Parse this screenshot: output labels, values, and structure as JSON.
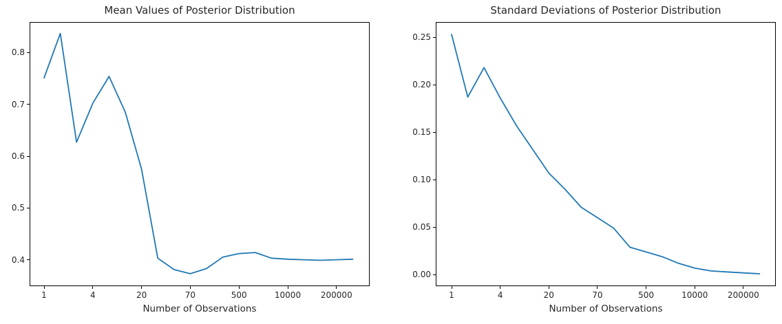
{
  "figure": {
    "background": "#ffffff",
    "axes_edge_color": "#000000",
    "text_color": "#262626"
  },
  "chart_data": [
    {
      "type": "line",
      "title": "Mean Values of Posterior Distribution",
      "xlabel": "Number of Observations",
      "ylabel": "",
      "legend": "none",
      "grid": false,
      "line_color": "#1f77b4",
      "x_scale": "log-spaced observation counts plotted by index",
      "x_tick_labels": [
        "1",
        "4",
        "20",
        "70",
        "500",
        "10000",
        "200000"
      ],
      "x_tick_indices": [
        0,
        3,
        6,
        9,
        12,
        15,
        18
      ],
      "y_tick_labels": [
        "0.4",
        "0.5",
        "0.6",
        "0.7",
        "0.8"
      ],
      "y_ticks": [
        0.4,
        0.5,
        0.6,
        0.7,
        0.8
      ],
      "ylim": [
        0.349,
        0.859
      ],
      "values": [
        0.751,
        0.837,
        0.627,
        0.702,
        0.754,
        0.685,
        0.575,
        0.403,
        0.381,
        0.373,
        0.383,
        0.405,
        0.412,
        0.414,
        0.403,
        0.401,
        0.4,
        0.399,
        0.4,
        0.401
      ]
    },
    {
      "type": "line",
      "title": "Standard Deviations of Posterior Distribution",
      "xlabel": "Number of Observations",
      "ylabel": "",
      "legend": "none",
      "grid": false,
      "line_color": "#1f77b4",
      "x_scale": "log-spaced observation counts plotted by index",
      "x_tick_labels": [
        "1",
        "4",
        "20",
        "70",
        "500",
        "10000",
        "200000"
      ],
      "x_tick_indices": [
        0,
        3,
        6,
        9,
        12,
        15,
        18
      ],
      "y_tick_labels": [
        "0.00",
        "0.05",
        "0.10",
        "0.15",
        "0.20",
        "0.25"
      ],
      "y_ticks": [
        0.0,
        0.05,
        0.1,
        0.15,
        0.2,
        0.25
      ],
      "ylim": [
        -0.012,
        0.266
      ],
      "values": [
        0.253,
        0.187,
        0.218,
        0.186,
        0.157,
        0.132,
        0.107,
        0.09,
        0.071,
        0.06,
        0.049,
        0.029,
        0.024,
        0.019,
        0.012,
        0.007,
        0.004,
        0.003,
        0.002,
        0.001
      ]
    }
  ]
}
